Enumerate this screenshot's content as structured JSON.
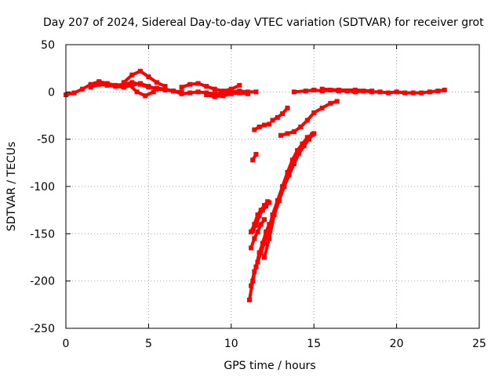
{
  "chart_data": {
    "type": "scatter",
    "title": "Day 207 of 2024, Sidereal Day-to-day VTEC variation (SDTVAR) for receiver grot",
    "xlabel": "GPS time / hours",
    "ylabel": "SDTVAR / TECUs",
    "xlim": [
      0,
      25
    ],
    "ylim": [
      -250,
      50
    ],
    "xticks": [
      "0",
      "5",
      "10",
      "15",
      "20",
      "25"
    ],
    "yticks": [
      "50",
      "0",
      "-50",
      "-100",
      "-150",
      "-200",
      "-250"
    ],
    "grid": true,
    "color": "#ff0000",
    "series": [
      {
        "x": [
          0.0,
          0.5,
          1.0,
          1.5,
          2.0,
          2.5,
          3.0,
          3.5,
          4.0,
          4.5,
          5.0,
          5.5,
          6.0,
          6.5,
          7.0,
          7.5,
          8.0,
          8.5,
          9.0,
          9.5,
          10.0,
          10.5,
          11.0,
          11.5
        ],
        "y": [
          -3,
          -1,
          3,
          8,
          11,
          9,
          7,
          8,
          10,
          8,
          5,
          4,
          3,
          1,
          -2,
          -1,
          0,
          -1,
          -2,
          -1,
          0,
          1,
          0,
          0
        ]
      },
      {
        "x": [
          1.5,
          2.0,
          2.5,
          3.0,
          3.5,
          4.0,
          4.5,
          5.0,
          5.5,
          6.0,
          6.5,
          7.0
        ],
        "y": [
          5,
          8,
          7,
          6,
          5,
          7,
          9,
          6,
          3,
          2,
          1,
          0
        ]
      },
      {
        "x": [
          3.5,
          4.0,
          4.5,
          5.0,
          5.5,
          6.0
        ],
        "y": [
          10,
          18,
          22,
          16,
          10,
          6
        ]
      },
      {
        "x": [
          3.8,
          4.3,
          4.8,
          5.3
        ],
        "y": [
          8,
          0,
          -4,
          0
        ]
      },
      {
        "x": [
          7.0,
          7.5,
          8.0,
          8.5,
          9.0,
          9.5,
          10.0,
          10.5
        ],
        "y": [
          5,
          8,
          9,
          6,
          3,
          1,
          3,
          7
        ]
      },
      {
        "x": [
          8.5,
          9.0,
          9.5,
          10.0,
          10.5,
          11.0
        ],
        "y": [
          -3,
          -5,
          -4,
          -2,
          -1,
          -2
        ]
      },
      {
        "x": [
          13.8,
          14.5,
          15.0,
          15.5,
          16.0,
          16.5,
          17.0,
          17.5,
          18.0,
          18.5,
          19.0,
          19.5,
          20.0,
          20.5,
          21.0,
          21.5,
          22.0,
          22.5,
          22.9
        ],
        "y": [
          0,
          1,
          2,
          1,
          2,
          1,
          1,
          0,
          1,
          0,
          0,
          -1,
          0,
          -1,
          -1,
          -1,
          0,
          1,
          2
        ]
      },
      {
        "x": [
          15.5,
          16.5,
          17.5,
          18.5
        ],
        "y": [
          3,
          2,
          2,
          1
        ]
      },
      {
        "x": [
          11.1,
          11.3,
          11.5,
          11.7,
          11.9,
          12.1,
          12.3
        ],
        "y": [
          -220,
          -200,
          -185,
          -170,
          -160,
          -148,
          -140
        ]
      },
      {
        "x": [
          11.2,
          11.4,
          11.6,
          11.8,
          12.0,
          12.2,
          12.5,
          12.8,
          13.1,
          13.4,
          13.7,
          14.0,
          14.3,
          14.6,
          14.9
        ],
        "y": [
          -205,
          -190,
          -180,
          -170,
          -160,
          -150,
          -130,
          -115,
          -100,
          -85,
          -72,
          -62,
          -55,
          -48,
          -45
        ]
      },
      {
        "x": [
          12.0,
          12.3,
          12.6,
          12.9,
          13.2,
          13.5,
          13.8,
          14.1,
          14.4,
          14.7,
          15.0
        ],
        "y": [
          -175,
          -155,
          -130,
          -115,
          -100,
          -88,
          -76,
          -65,
          -57,
          -50,
          -44
        ]
      },
      {
        "x": [
          11.2,
          11.4,
          11.6,
          11.8,
          12.0
        ],
        "y": [
          -165,
          -155,
          -148,
          -140,
          -135
        ]
      },
      {
        "x": [
          11.2,
          11.4,
          11.6,
          11.8,
          12.0,
          12.2
        ],
        "y": [
          -148,
          -140,
          -130,
          -125,
          -120,
          -116
        ]
      },
      {
        "x": [
          11.3,
          11.5,
          11.7,
          11.9,
          12.1,
          12.3
        ],
        "y": [
          -147,
          -141,
          -131,
          -125,
          -121,
          -117
        ]
      },
      {
        "x": [
          11.3,
          11.5
        ],
        "y": [
          -72,
          -66
        ]
      },
      {
        "x": [
          11.4,
          11.7,
          12.0,
          12.3
        ],
        "y": [
          -40,
          -37,
          -35,
          -34
        ]
      },
      {
        "x": [
          12.5,
          12.8,
          13.1,
          13.4
        ],
        "y": [
          -30,
          -27,
          -23,
          -17
        ]
      },
      {
        "x": [
          13.0,
          13.4,
          13.8,
          14.2,
          14.6,
          15.0,
          15.5,
          16.0,
          16.4
        ],
        "y": [
          -46,
          -44,
          -42,
          -37,
          -30,
          -22,
          -17,
          -12,
          -10
        ]
      }
    ]
  }
}
